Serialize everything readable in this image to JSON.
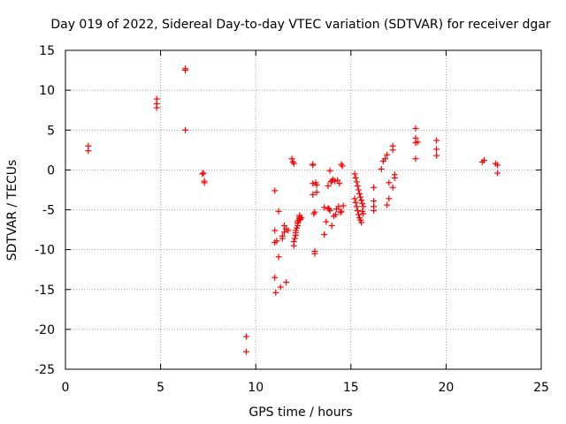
{
  "chart_data": {
    "type": "scatter",
    "title": "Day 019 of 2022, Sidereal Day-to-day VTEC variation (SDTVAR) for receiver dgar",
    "xlabel": "GPS time / hours",
    "ylabel": "SDTVAR / TECUs",
    "xlim": [
      0,
      25
    ],
    "ylim": [
      -25,
      15
    ],
    "xticks": [
      0,
      5,
      10,
      15,
      20,
      25
    ],
    "yticks": [
      -25,
      -20,
      -15,
      -10,
      -5,
      0,
      5,
      10,
      15
    ],
    "grid": true,
    "legend": "none",
    "marker": "plus",
    "color": "#ff0000",
    "series": [
      {
        "name": "SDTVAR",
        "x": [
          1.2,
          1.2,
          4.8,
          4.8,
          4.8,
          6.3,
          6.3,
          6.3,
          7.2,
          7.25,
          7.3,
          7.3,
          9.5,
          9.5,
          11.0,
          11.0,
          11.0,
          11.0,
          11.05,
          11.1,
          11.2,
          11.2,
          11.3,
          11.4,
          11.4,
          11.5,
          11.5,
          11.6,
          11.6,
          11.7,
          11.9,
          11.95,
          12.0,
          12.0,
          12.0,
          12.05,
          12.1,
          12.1,
          12.1,
          12.15,
          12.2,
          12.2,
          12.2,
          12.25,
          12.3,
          12.3,
          12.3,
          12.35,
          12.4,
          13.0,
          13.0,
          13.0,
          13.0,
          13.05,
          13.1,
          13.1,
          13.1,
          13.15,
          13.2,
          13.2,
          13.6,
          13.6,
          13.7,
          13.8,
          13.8,
          13.85,
          13.9,
          13.9,
          13.95,
          14.0,
          14.0,
          14.05,
          14.1,
          14.15,
          14.2,
          14.25,
          14.3,
          14.35,
          14.4,
          14.45,
          14.5,
          14.5,
          14.55,
          14.6,
          15.2,
          15.25,
          15.3,
          15.35,
          15.4,
          15.45,
          15.5,
          15.55,
          15.6,
          15.65,
          15.2,
          15.25,
          15.3,
          15.35,
          15.4,
          15.45,
          15.5,
          15.55,
          15.6,
          15.65,
          16.2,
          16.2,
          16.2,
          16.2,
          16.6,
          16.7,
          16.8,
          16.9,
          16.9,
          17.0,
          17.0,
          17.2,
          17.2,
          17.2,
          17.3,
          17.3,
          18.4,
          18.4,
          18.4,
          18.4,
          18.5,
          19.5,
          19.5,
          19.5,
          21.9,
          22.0,
          22.6,
          22.7,
          22.7
        ],
        "y": [
          3.0,
          2.4,
          8.9,
          8.3,
          7.8,
          12.7,
          12.5,
          5.0,
          -0.5,
          -0.4,
          -1.4,
          -1.6,
          -20.9,
          -22.8,
          -2.6,
          -7.6,
          -9.1,
          -13.5,
          -15.4,
          -8.9,
          -5.2,
          -10.9,
          -14.7,
          -8.3,
          -8.6,
          -7.8,
          -7.0,
          -7.4,
          -14.1,
          -7.6,
          1.4,
          1.0,
          0.8,
          -9.5,
          -9.0,
          -8.6,
          -8.2,
          -7.9,
          -7.6,
          -7.3,
          -7.0,
          -6.7,
          -6.5,
          -6.3,
          -6.1,
          -5.9,
          -5.7,
          -6.2,
          -6.0,
          0.7,
          0.6,
          -1.7,
          -3.1,
          -5.5,
          -5.3,
          -10.2,
          -10.5,
          -1.6,
          -2.8,
          -1.9,
          -4.7,
          -8.1,
          -6.5,
          -4.8,
          -2.0,
          -4.9,
          -5.1,
          -0.1,
          -1.5,
          -1.4,
          -7.0,
          -1.2,
          -5.8,
          -1.4,
          -5.6,
          -4.9,
          -1.3,
          -4.6,
          -1.7,
          -5.3,
          0.7,
          -5.2,
          0.5,
          -4.5,
          -0.5,
          -1.0,
          -1.5,
          -2.0,
          -2.5,
          -3.0,
          -3.4,
          -3.8,
          -4.2,
          -4.6,
          -3.6,
          -4.1,
          -4.6,
          -5.1,
          -5.6,
          -6.0,
          -6.3,
          -6.6,
          -5.2,
          -5.5,
          -2.2,
          -3.9,
          -4.6,
          -5.1,
          0.1,
          1.1,
          1.4,
          1.9,
          -4.4,
          -1.6,
          -3.6,
          3.0,
          2.5,
          -2.2,
          -1.0,
          -0.6,
          5.2,
          4.0,
          3.4,
          1.4,
          3.5,
          3.7,
          2.6,
          1.8,
          1.0,
          1.2,
          0.8,
          0.6,
          -0.4
        ]
      }
    ]
  }
}
